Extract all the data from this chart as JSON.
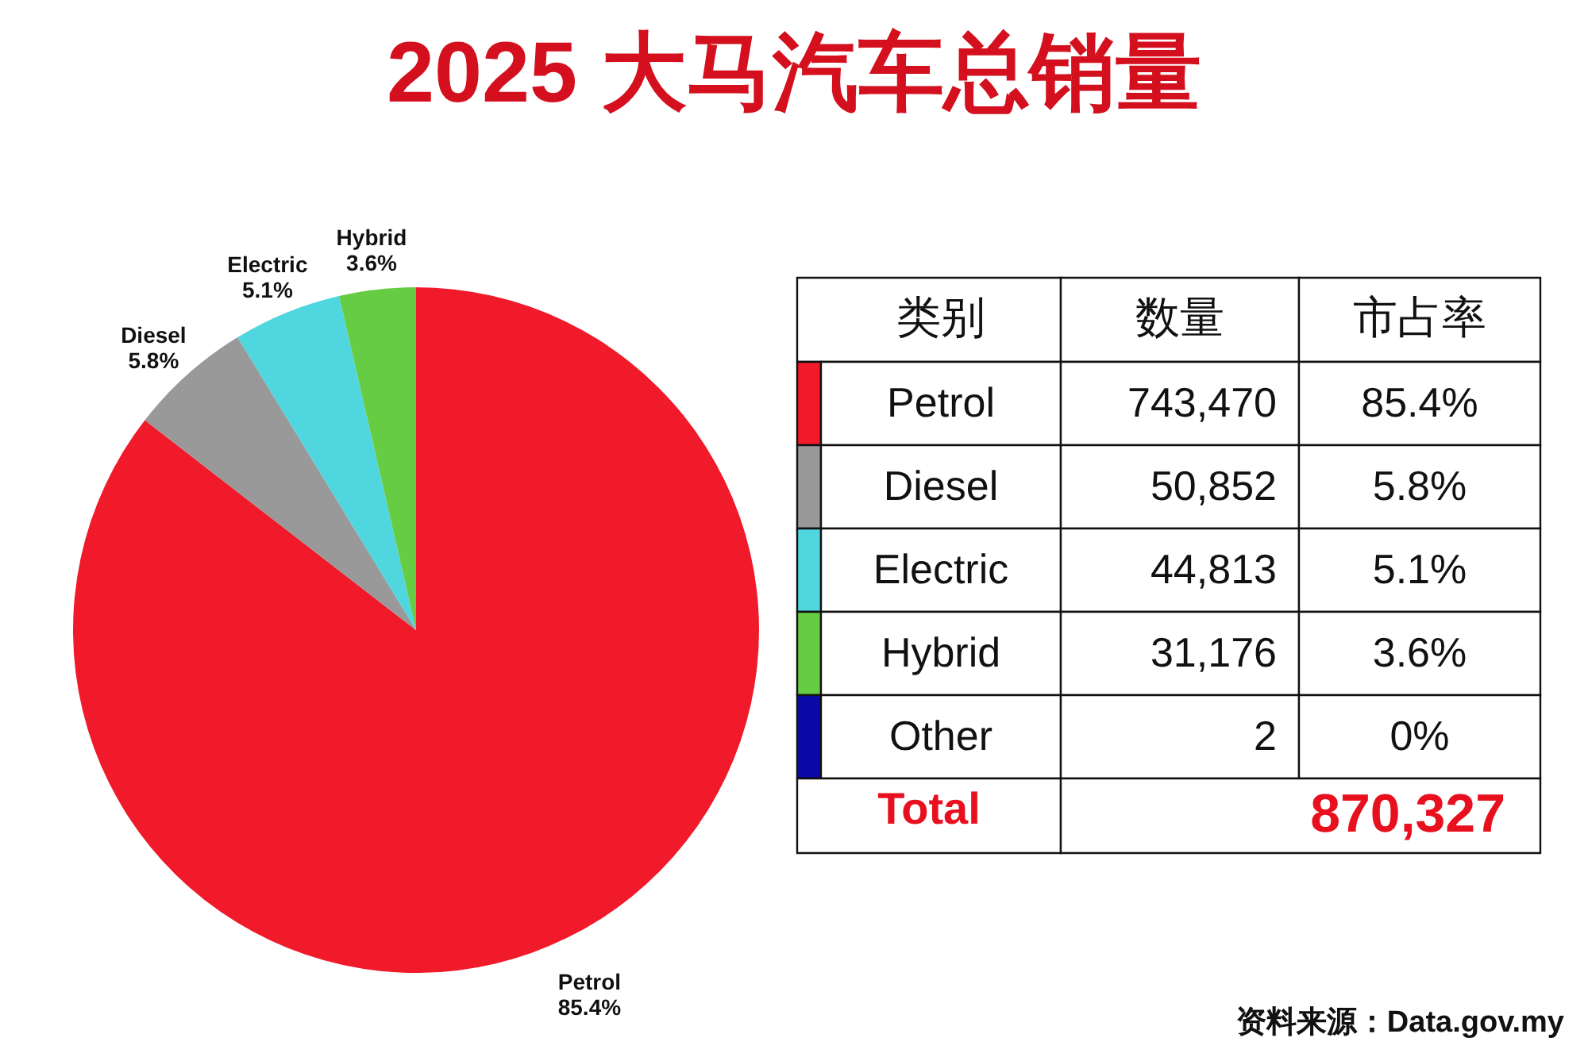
{
  "chart_data": [
    {
      "type": "pie",
      "title": "2025 大马汽车总销量",
      "categories": [
        "Petrol",
        "Diesel",
        "Electric",
        "Hybrid",
        "Other"
      ],
      "values": [
        85.4,
        5.8,
        5.1,
        3.6,
        0
      ],
      "colors": [
        "#f01a2a",
        "#999999",
        "#4fd6de",
        "#66cc44",
        "#0a0aa8"
      ],
      "value_labels": [
        "85.4%",
        "5.8%",
        "5.1%",
        "3.6%",
        "0%"
      ],
      "legend": "right",
      "annotations": [
        "资料来源：Data.gov.my"
      ]
    },
    {
      "type": "other",
      "values": [
        743470,
        50852,
        44813,
        31176,
        2
      ],
      "value_labels": [
        "743,470",
        "50,852",
        "44,813",
        "31,176",
        "2"
      ],
      "totals": [
        "870,327"
      ],
      "annotations": [
        "类别",
        "数量",
        "市占率",
        "Total"
      ]
    }
  ]
}
